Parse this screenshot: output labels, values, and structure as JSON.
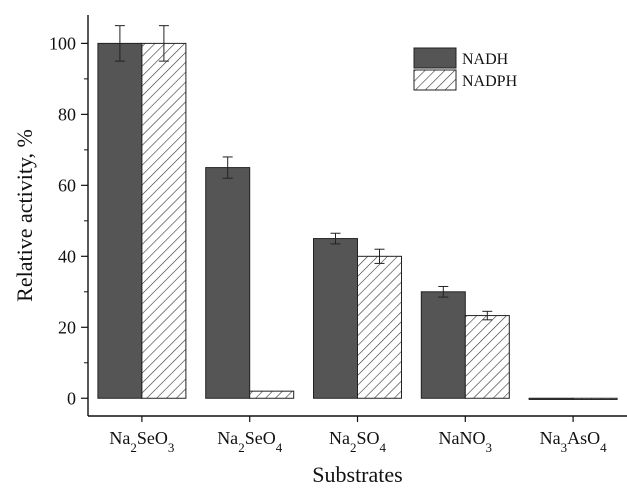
{
  "chart_data": {
    "type": "bar",
    "title": "",
    "xlabel": "Substrates",
    "ylabel": "Relative activity, %",
    "ylim": [
      -5,
      108
    ],
    "yticks": [
      0,
      20,
      40,
      60,
      80,
      100
    ],
    "categories": [
      {
        "base": "Na",
        "sub1": "2",
        "mid": "SeO",
        "sub2": "3"
      },
      {
        "base": "Na",
        "sub1": "2",
        "mid": "SeO",
        "sub2": "4"
      },
      {
        "base": "Na",
        "sub1": "2",
        "mid": "SO",
        "sub2": "4"
      },
      {
        "base": "NaNO",
        "sub1": "3",
        "mid": "",
        "sub2": ""
      },
      {
        "base": "Na",
        "sub1": "3",
        "mid": "AsO",
        "sub2": "4"
      }
    ],
    "series": [
      {
        "name": "NADH",
        "values": [
          100,
          65,
          45,
          30,
          0
        ],
        "errors": [
          5,
          3,
          1.5,
          1.5,
          0
        ],
        "fill": "#555555",
        "pattern": "solid"
      },
      {
        "name": "NADPH",
        "values": [
          100,
          2,
          40,
          23.3,
          0
        ],
        "errors": [
          5,
          0,
          2,
          1.2,
          0
        ],
        "fill": "#ffffff",
        "pattern": "hatch"
      }
    ],
    "legend_position": "top-right",
    "grid": false
  }
}
